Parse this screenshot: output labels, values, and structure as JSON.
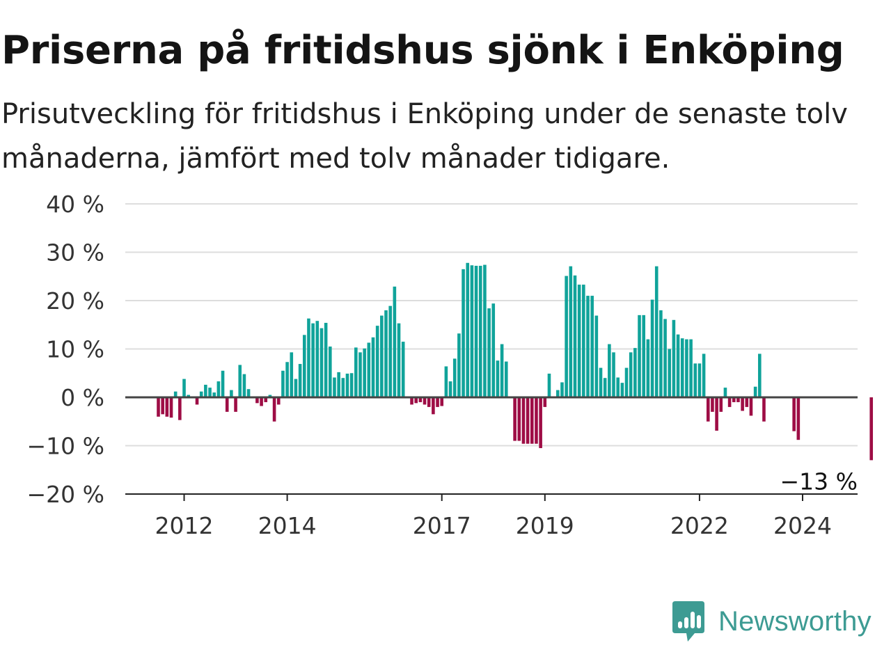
{
  "title": "Priserna på fritidshus sjönk i Enköping",
  "subtitle": "Prisutveckling för fritidshus i Enköping under de senaste tolv månaderna, jämfört med tolv månader tidigare.",
  "brand": {
    "name": "Newsworthy",
    "icon": "newsworthy-logo-icon",
    "color": "#3d9b93"
  },
  "chart_data": {
    "type": "bar",
    "title": "Priserna på fritidshus sjönk i Enköping",
    "subtitle": "Prisutveckling för fritidshus i Enköping under de senaste tolv månaderna, jämfört med tolv månader tidigare.",
    "xlabel": "",
    "ylabel": "",
    "ylim": [
      -20,
      40
    ],
    "y_ticks": [
      40,
      30,
      20,
      10,
      0,
      -10,
      -20
    ],
    "y_tick_labels": [
      "40 %",
      "30 %",
      "20 %",
      "10 %",
      "0 %",
      "−10 %",
      "−20 %"
    ],
    "x_ticks": [
      "2012",
      "2014",
      "2017",
      "2019",
      "2022",
      "2024"
    ],
    "grid": true,
    "colors": {
      "positive": "#10a39a",
      "negative": "#9e0d45",
      "grid": "#dddddd",
      "zero_line": "#444444"
    },
    "annotation": {
      "label": "−13 %",
      "value": -13,
      "period": "2025-01"
    },
    "start_month": "2011-07",
    "values": [
      -4,
      -3.5,
      -4,
      -4.2,
      1.2,
      -4.7,
      3.8,
      0.5,
      null,
      -1.5,
      1.2,
      2.6,
      2,
      1,
      3.3,
      5.5,
      -3,
      1.5,
      -3,
      6.7,
      4.8,
      1.7,
      null,
      -1.2,
      -1.8,
      -1,
      0.5,
      -5,
      -1.5,
      5.5,
      7.3,
      9.3,
      3.8,
      6.9,
      12.9,
      16.3,
      15.3,
      15.8,
      14.3,
      15.4,
      10.5,
      4.1,
      5.2,
      4,
      4.9,
      5,
      10.3,
      9.3,
      10.1,
      11.3,
      12.4,
      14.8,
      16.9,
      18,
      18.9,
      22.9,
      15.3,
      11.5,
      null,
      -1.5,
      -1.2,
      -1,
      -1.5,
      -2,
      -3.5,
      -2,
      -1.8,
      6.4,
      3.3,
      8,
      13.2,
      26.5,
      27.8,
      27.3,
      27.2,
      27.2,
      27.4,
      18.4,
      19.4,
      7.6,
      11,
      7.4,
      null,
      -9,
      -9,
      -9.6,
      -9.6,
      -9.6,
      -9.6,
      -10.5,
      -2,
      4.9,
      null,
      1.5,
      3.1,
      25.1,
      27.1,
      25.2,
      23.3,
      23.3,
      21,
      21,
      16.9,
      6.1,
      4,
      11,
      9.3,
      4.1,
      3,
      6.1,
      9.3,
      10.2,
      17,
      17,
      12,
      20.2,
      27.1,
      18,
      16.2,
      10,
      16,
      13,
      12.2,
      12,
      12,
      7,
      7,
      9,
      -5,
      -3,
      -6.9,
      -3,
      2,
      -2,
      -1,
      -1,
      -2.8,
      -2,
      -3.8,
      2.2,
      9,
      -5,
      null,
      null,
      null,
      null,
      null,
      null,
      -7,
      -8.8,
      null,
      null,
      null,
      null,
      null,
      null,
      null,
      null,
      null,
      null,
      null,
      null,
      null,
      null,
      null,
      null,
      -13
    ]
  }
}
